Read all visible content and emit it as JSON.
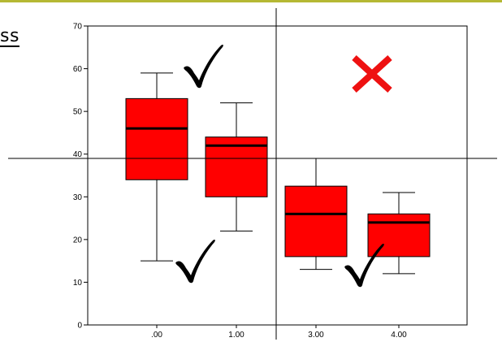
{
  "page": {
    "heading_fragment": "ss"
  },
  "colors": {
    "box_fill": "#ff0000",
    "box_stroke": "#000000",
    "check_mark": "#000000",
    "cross_mark": "#ee1111",
    "top_rule": "#b5b834"
  },
  "annotations": {
    "check_icon": "check-mark-icon",
    "cross_icon": "cross-mark-icon",
    "marks": [
      {
        "icon": "check-mark-icon",
        "near": ".00",
        "position": "upper"
      },
      {
        "icon": "check-mark-icon",
        "near": ".00",
        "position": "lower"
      },
      {
        "icon": "check-mark-icon",
        "near": "4.00",
        "position": "lower"
      },
      {
        "icon": "cross-mark-icon",
        "near": "4.00",
        "position": "upper"
      }
    ]
  },
  "chart_data": {
    "type": "boxplot",
    "title": "",
    "xlabel": "",
    "ylabel": "",
    "categories": [
      ".00",
      "1.00",
      "3.00",
      "4.00"
    ],
    "boxes": [
      {
        "category": ".00",
        "min": 15,
        "q1": 34,
        "median": 46,
        "q3": 53,
        "max": 59
      },
      {
        "category": "1.00",
        "min": 22,
        "q1": 30,
        "median": 42,
        "q3": 44,
        "max": 52
      },
      {
        "category": "3.00",
        "min": 13,
        "q1": 16,
        "median": 26,
        "q3": 32.5,
        "max": 39
      },
      {
        "category": "4.00",
        "min": 12,
        "q1": 16,
        "median": 24,
        "q3": 26,
        "max": 31
      }
    ],
    "ylim": [
      0,
      70
    ],
    "yticks": [
      0,
      10,
      20,
      30,
      40,
      50,
      60,
      70
    ],
    "reference_lines": {
      "horizontal_y": 39,
      "vertical_between": [
        "1.00",
        "3.00"
      ]
    },
    "grid": false,
    "legend": "none"
  }
}
